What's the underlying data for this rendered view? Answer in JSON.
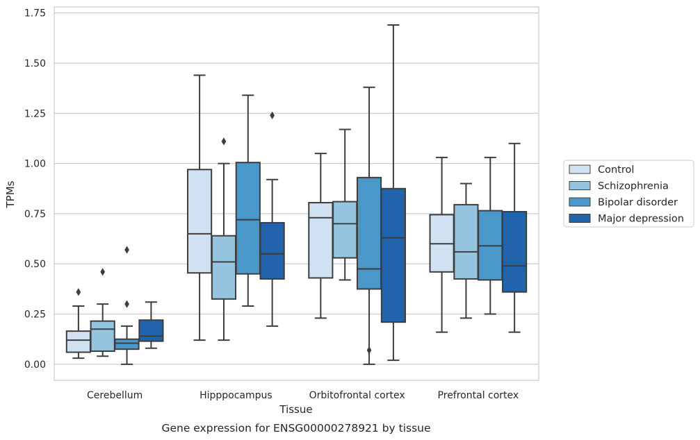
{
  "caption": "Gene expression for ENSG00000278921 by tissue",
  "chart_data": {
    "type": "boxplot",
    "title": "",
    "xlabel": "Tissue",
    "ylabel": "TPMs",
    "ylim": [
      -0.08,
      1.78
    ],
    "yticks": [
      0.0,
      0.25,
      0.5,
      0.75,
      1.0,
      1.25,
      1.5,
      1.75
    ],
    "ytick_labels": [
      "0.00",
      "0.25",
      "0.50",
      "0.75",
      "1.00",
      "1.25",
      "1.50",
      "1.75"
    ],
    "grid": "horizontal",
    "legend_position": "right, outside plot",
    "categories": [
      "Cerebellum",
      "Hipppocampus",
      "Orbitofrontal cortex",
      "Prefrontal cortex"
    ],
    "series": [
      {
        "name": "Control",
        "color": "#d0e1f2",
        "boxes": [
          {
            "whislo": 0.03,
            "q1": 0.06,
            "med": 0.12,
            "q3": 0.165,
            "whishi": 0.29,
            "fliers": [
              0.36
            ]
          },
          {
            "whislo": 0.12,
            "q1": 0.455,
            "med": 0.65,
            "q3": 0.97,
            "whishi": 1.44,
            "fliers": []
          },
          {
            "whislo": 0.23,
            "q1": 0.43,
            "med": 0.73,
            "q3": 0.805,
            "whishi": 1.05,
            "fliers": []
          },
          {
            "whislo": 0.16,
            "q1": 0.46,
            "med": 0.6,
            "q3": 0.745,
            "whishi": 1.03,
            "fliers": []
          }
        ]
      },
      {
        "name": "Schizophrenia",
        "color": "#94c4df",
        "boxes": [
          {
            "whislo": 0.04,
            "q1": 0.065,
            "med": 0.175,
            "q3": 0.215,
            "whishi": 0.3,
            "fliers": [
              0.46
            ]
          },
          {
            "whislo": 0.12,
            "q1": 0.325,
            "med": 0.51,
            "q3": 0.64,
            "whishi": 1.0,
            "fliers": [
              1.11
            ]
          },
          {
            "whislo": 0.42,
            "q1": 0.53,
            "med": 0.7,
            "q3": 0.81,
            "whishi": 1.17,
            "fliers": []
          },
          {
            "whislo": 0.23,
            "q1": 0.425,
            "med": 0.56,
            "q3": 0.795,
            "whishi": 0.9,
            "fliers": []
          }
        ]
      },
      {
        "name": "Bipolar disorder",
        "color": "#4a98c9",
        "boxes": [
          {
            "whislo": 0.0,
            "q1": 0.075,
            "med": 0.105,
            "q3": 0.125,
            "whishi": 0.19,
            "fliers": [
              0.3,
              0.57
            ]
          },
          {
            "whislo": 0.29,
            "q1": 0.45,
            "med": 0.72,
            "q3": 1.005,
            "whishi": 1.34,
            "fliers": []
          },
          {
            "whislo": 0.0,
            "q1": 0.375,
            "med": 0.475,
            "q3": 0.93,
            "whishi": 1.38,
            "fliers": [
              0.07
            ]
          },
          {
            "whislo": 0.25,
            "q1": 0.42,
            "med": 0.59,
            "q3": 0.765,
            "whishi": 1.03,
            "fliers": []
          }
        ]
      },
      {
        "name": "Major depression",
        "color": "#2164ab",
        "boxes": [
          {
            "whislo": 0.08,
            "q1": 0.115,
            "med": 0.14,
            "q3": 0.22,
            "whishi": 0.31,
            "fliers": []
          },
          {
            "whislo": 0.19,
            "q1": 0.425,
            "med": 0.55,
            "q3": 0.705,
            "whishi": 0.92,
            "fliers": [
              1.24
            ]
          },
          {
            "whislo": 0.02,
            "q1": 0.21,
            "med": 0.63,
            "q3": 0.875,
            "whishi": 1.69,
            "fliers": []
          },
          {
            "whislo": 0.16,
            "q1": 0.36,
            "med": 0.49,
            "q3": 0.76,
            "whishi": 1.1,
            "fliers": []
          }
        ]
      }
    ]
  }
}
